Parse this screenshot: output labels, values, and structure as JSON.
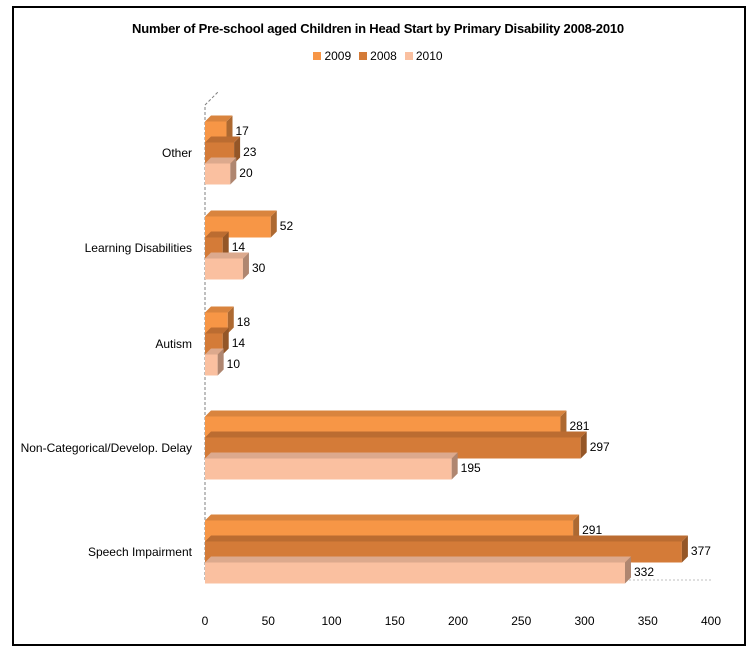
{
  "chart_data": {
    "type": "bar",
    "orientation": "horizontal",
    "title": "Number of Pre-school aged Children in Head Start by Primary Disability 2008-2010",
    "categories": [
      "Speech Impairment",
      "Non-Categorical/Develop. Delay",
      "Autism",
      "Learning Disabilities",
      "Other"
    ],
    "series": [
      {
        "name": "2009",
        "color": "#F79646",
        "values": [
          291,
          281,
          18,
          52,
          17
        ]
      },
      {
        "name": "2008",
        "color": "#D47B38",
        "values": [
          377,
          297,
          14,
          14,
          23
        ]
      },
      {
        "name": "2010",
        "color": "#FAC0A0",
        "values": [
          332,
          195,
          10,
          30,
          20
        ]
      }
    ],
    "xlim": [
      0,
      400
    ],
    "xticks": [
      "0",
      "50",
      "100",
      "150",
      "200",
      "250",
      "300",
      "350",
      "400"
    ],
    "legend_position": "top",
    "grid": false,
    "style": "3d"
  }
}
